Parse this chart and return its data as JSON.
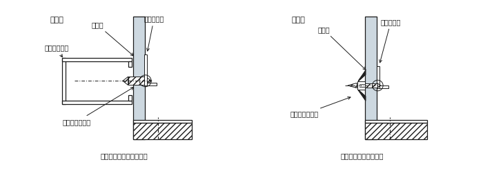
{
  "bg_color": "#ffffff",
  "line_color": "#1a1a1a",
  "wall_fill": "#cdd8e0",
  "label1": "（＊）",
  "label2": "（＊）",
  "text_board1": "ボード",
  "text_steel": "下地軽量鉄骨",
  "text_screw": "タッピングビス",
  "text_bracket1": "壁固定金具",
  "text_caption1": "下地軽量鉄骨への固定例",
  "text_board2": "ボード",
  "text_anchor": "ボードアンカー",
  "text_bracket2": "壁固定金具",
  "text_caption2": "ボードへの直接固定例"
}
